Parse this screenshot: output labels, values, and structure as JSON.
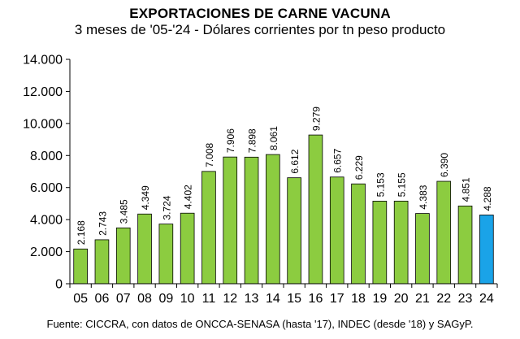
{
  "chart_data": {
    "type": "bar",
    "title": "EXPORTACIONES DE CARNE VACUNA",
    "subtitle": "3 meses de '05-'24 - Dólares corrientes por tn peso producto",
    "xlabel": "",
    "ylabel": "",
    "ylim": [
      0,
      14000
    ],
    "yticks": [
      "0",
      "2.000",
      "4.000",
      "6.000",
      "8.000",
      "10.000",
      "12.000",
      "14.000"
    ],
    "categories": [
      "05",
      "06",
      "07",
      "08",
      "09",
      "10",
      "11",
      "12",
      "13",
      "14",
      "15",
      "16",
      "17",
      "18",
      "19",
      "20",
      "21",
      "22",
      "23",
      "24"
    ],
    "values": [
      2168,
      2743,
      3485,
      4349,
      3724,
      4402,
      7008,
      7906,
      7898,
      8061,
      6612,
      9279,
      6657,
      6229,
      5153,
      5155,
      4383,
      6390,
      4851,
      4288
    ],
    "value_labels": [
      "2.168",
      "2.743",
      "3.485",
      "4.349",
      "3.724",
      "4.402",
      "7.008",
      "7.906",
      "7.898",
      "8.061",
      "6.612",
      "9.279",
      "6.657",
      "6.229",
      "5.153",
      "5.155",
      "4.383",
      "6.390",
      "4.851",
      "4.288"
    ],
    "colors": {
      "bar": "#8ccc40",
      "highlight": "#1aa3e8",
      "border": "#000000"
    },
    "highlight_index": 19,
    "grid": false,
    "legend": "none"
  },
  "footer": "Fuente: CICCRA, con datos de ONCCA-SENASA (hasta '17), INDEC (desde '18) y SAGyP."
}
